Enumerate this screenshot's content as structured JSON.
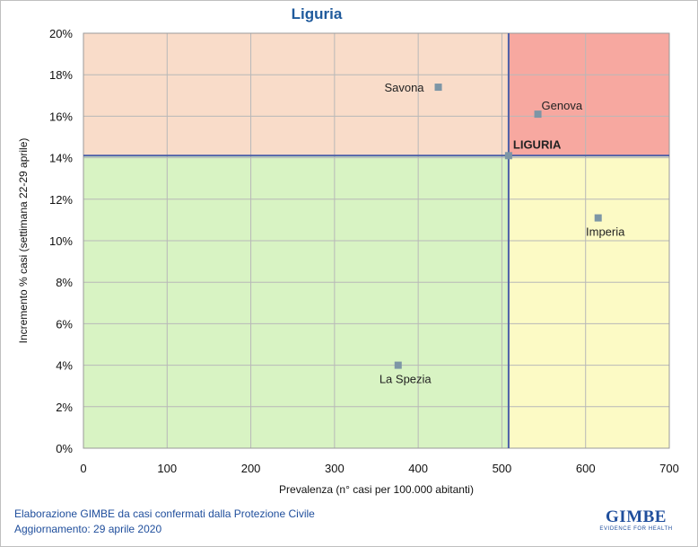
{
  "chart_data": {
    "type": "scatter",
    "title": "Liguria",
    "xlabel": "Prevalenza  (n° casi per 100.000 abitanti)",
    "ylabel": "Incremento % casi (settimana 22-29 aprile)",
    "xlim": [
      0,
      700
    ],
    "ylim": [
      0,
      20
    ],
    "x_ticks": [
      "0",
      "100",
      "200",
      "300",
      "400",
      "500",
      "600",
      "700"
    ],
    "y_ticks": [
      "0%",
      "2%",
      "4%",
      "6%",
      "8%",
      "10%",
      "12%",
      "14%",
      "16%",
      "18%",
      "20%"
    ],
    "grid": true,
    "quadrants": {
      "divider_x": 508,
      "divider_y": 14.1,
      "colors": {
        "top_left": "#f9dcc9",
        "top_right": "#f7a8a0",
        "bottom_left": "#d8f3c3",
        "bottom_right": "#fcfac5"
      }
    },
    "points": [
      {
        "label": "Savona",
        "x": 424,
        "y": 17.4,
        "label_pos": "left"
      },
      {
        "label": "Genova",
        "x": 543,
        "y": 16.1,
        "label_pos": "above-right"
      },
      {
        "label": "LIGURIA",
        "x": 508,
        "y": 14.1,
        "label_pos": "above-right",
        "highlight": true
      },
      {
        "label": "Imperia",
        "x": 615,
        "y": 11.1,
        "label_pos": "below"
      },
      {
        "label": "La Spezia",
        "x": 376,
        "y": 4.0,
        "label_pos": "below"
      }
    ],
    "marker_color": "#7d96a6",
    "divider_color": "#4a5ea8",
    "highlight_color": "#7b2b2b"
  },
  "footer": {
    "line1": "Elaborazione GIMBE da casi confermati dalla Protezione Civile",
    "line2": "Aggiornamento: 29 aprile 2020"
  },
  "logo": {
    "name": "GIMBE",
    "tagline": "EVIDENCE FOR HEALTH"
  }
}
